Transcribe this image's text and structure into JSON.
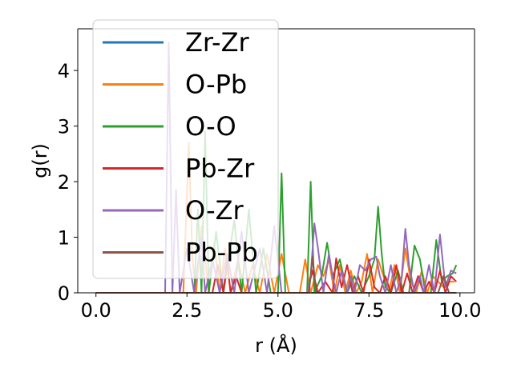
{
  "chart_data": {
    "type": "line",
    "title": "",
    "xlabel": "r (Å)",
    "ylabel": "g(r)",
    "xlim": [
      -0.5,
      10.4
    ],
    "ylim": [
      0,
      4.75
    ],
    "xticks": [
      0.0,
      2.5,
      5.0,
      7.5,
      10.0
    ],
    "xtick_labels": [
      "0.0",
      "2.5",
      "5.0",
      "7.5",
      "10.0"
    ],
    "yticks": [
      0,
      1,
      2,
      3,
      4
    ],
    "ytick_labels": [
      "0",
      "1",
      "2",
      "3",
      "4"
    ],
    "grid": false,
    "legend_position": "upper-left",
    "series": [
      {
        "name": "Zr-Zr",
        "color": "#1f77b4",
        "x": [
          0.0,
          9.9
        ],
        "y": [
          0.0,
          0.0
        ]
      },
      {
        "name": "O-Pb",
        "color": "#ff7f0e",
        "x": [
          0.0,
          2.4,
          2.55,
          2.65,
          2.75,
          2.9,
          3.1,
          3.25,
          3.4,
          3.55,
          3.7,
          3.9,
          4.1,
          4.3,
          4.5,
          4.7,
          4.9,
          5.1,
          5.3,
          5.6,
          5.75,
          5.9,
          6.1,
          6.25,
          6.4,
          6.55,
          6.7,
          6.85,
          7.0,
          7.15,
          7.3,
          7.45,
          7.6,
          7.75,
          7.9,
          8.05,
          8.2,
          8.35,
          8.5,
          8.65,
          8.8,
          8.95,
          9.1,
          9.25,
          9.4,
          9.55,
          9.7,
          9.85
        ],
        "y": [
          0.0,
          0.0,
          2.7,
          0.6,
          0.0,
          1.2,
          0.0,
          0.9,
          0.0,
          0.8,
          0.0,
          0.6,
          0.0,
          0.5,
          0.0,
          0.7,
          0.0,
          0.7,
          0.0,
          0.0,
          0.6,
          0.0,
          0.5,
          0.3,
          0.6,
          0.0,
          0.5,
          0.0,
          0.4,
          0.0,
          0.2,
          0.7,
          0.0,
          0.6,
          0.3,
          0.0,
          0.5,
          0.0,
          0.8,
          0.2,
          0.0,
          0.4,
          0.0,
          0.3,
          0.2,
          0.1,
          0.2,
          0.2
        ]
      },
      {
        "name": "O-O",
        "color": "#2ca02c",
        "x": [
          0.0,
          2.7,
          2.8,
          2.9,
          3.0,
          3.1,
          3.3,
          3.5,
          3.8,
          4.0,
          4.2,
          4.4,
          4.6,
          4.8,
          5.0,
          5.1,
          5.2,
          5.4,
          5.6,
          5.8,
          5.9,
          6.0,
          6.2,
          6.35,
          6.5,
          6.7,
          6.9,
          7.1,
          7.3,
          7.5,
          7.65,
          7.75,
          7.85,
          7.95,
          8.1,
          8.3,
          8.45,
          8.6,
          8.75,
          8.9,
          9.05,
          9.2,
          9.35,
          9.5,
          9.65,
          9.8,
          9.9
        ],
        "y": [
          0.0,
          0.0,
          1.5,
          0.0,
          2.9,
          0.0,
          1.1,
          0.0,
          1.3,
          0.0,
          1.5,
          0.0,
          0.8,
          0.0,
          0.0,
          2.15,
          0.0,
          0.0,
          0.0,
          0.0,
          2.0,
          0.0,
          0.3,
          0.9,
          0.3,
          0.6,
          0.0,
          0.3,
          0.0,
          0.3,
          0.6,
          1.55,
          0.7,
          0.1,
          0.0,
          0.4,
          0.0,
          0.0,
          0.85,
          0.6,
          0.0,
          0.0,
          0.95,
          0.2,
          0.3,
          0.35,
          0.5
        ]
      },
      {
        "name": "Pb-Zr",
        "color": "#d62728",
        "x": [
          0.0,
          3.2,
          3.35,
          3.5,
          3.6,
          3.7,
          3.85,
          4.0,
          5.8,
          5.95,
          6.1,
          6.3,
          6.5,
          6.6,
          6.75,
          6.9,
          7.05,
          7.2,
          7.35,
          7.5,
          7.65,
          7.8,
          7.95,
          8.1,
          8.25,
          8.4,
          8.55,
          8.7,
          8.85,
          9.0,
          9.15,
          9.3,
          9.45,
          9.6,
          9.75,
          9.9
        ],
        "y": [
          0.0,
          0.0,
          0.5,
          0.0,
          0.6,
          0.0,
          0.3,
          0.0,
          0.0,
          0.4,
          0.0,
          0.2,
          0.0,
          0.62,
          0.1,
          0.5,
          0.0,
          0.3,
          0.0,
          0.6,
          0.1,
          0.0,
          0.3,
          0.0,
          0.5,
          0.0,
          0.35,
          0.0,
          0.3,
          0.0,
          0.2,
          0.0,
          0.4,
          0.0,
          0.3,
          0.2
        ]
      },
      {
        "name": "O-Zr",
        "color": "#9467bd",
        "x": [
          0.0,
          1.9,
          2.0,
          2.1,
          2.2,
          2.3,
          2.5,
          2.7,
          2.9,
          3.0,
          3.2,
          3.4,
          3.6,
          3.8,
          4.0,
          4.2,
          4.5,
          4.7,
          4.9,
          5.1,
          5.3,
          5.6,
          5.8,
          5.9,
          6.0,
          6.1,
          6.25,
          6.4,
          6.5,
          6.6,
          6.75,
          6.9,
          7.0,
          7.1,
          7.25,
          7.4,
          7.55,
          7.7,
          7.8,
          7.95,
          8.1,
          8.25,
          8.4,
          8.5,
          8.6,
          8.75,
          8.9,
          9.0,
          9.15,
          9.3,
          9.45,
          9.6,
          9.75,
          9.9
        ],
        "y": [
          0.0,
          0.0,
          4.5,
          0.0,
          1.85,
          0.0,
          0.8,
          0.0,
          1.0,
          0.0,
          0.6,
          0.0,
          0.7,
          0.0,
          1.1,
          0.0,
          0.8,
          0.0,
          1.2,
          0.0,
          0.0,
          0.0,
          0.0,
          0.3,
          1.25,
          0.8,
          0.0,
          0.7,
          0.3,
          0.0,
          0.4,
          0.0,
          0.3,
          0.0,
          0.5,
          0.4,
          0.6,
          0.65,
          0.3,
          0.0,
          0.5,
          0.0,
          0.3,
          1.15,
          0.5,
          0.0,
          0.3,
          0.0,
          0.5,
          0.0,
          1.05,
          0.1,
          0.4,
          0.35
        ]
      },
      {
        "name": "Pb-Pb",
        "color": "#8c564b",
        "x": [
          0.0,
          5.7,
          5.85,
          5.95,
          6.05,
          6.2,
          9.2,
          9.4,
          9.55,
          9.7,
          9.9
        ],
        "y": [
          0.0,
          0.0,
          0.0,
          0.65,
          0.0,
          0.0,
          0.0,
          0.0,
          0.3,
          0.0,
          0.0
        ]
      }
    ]
  }
}
